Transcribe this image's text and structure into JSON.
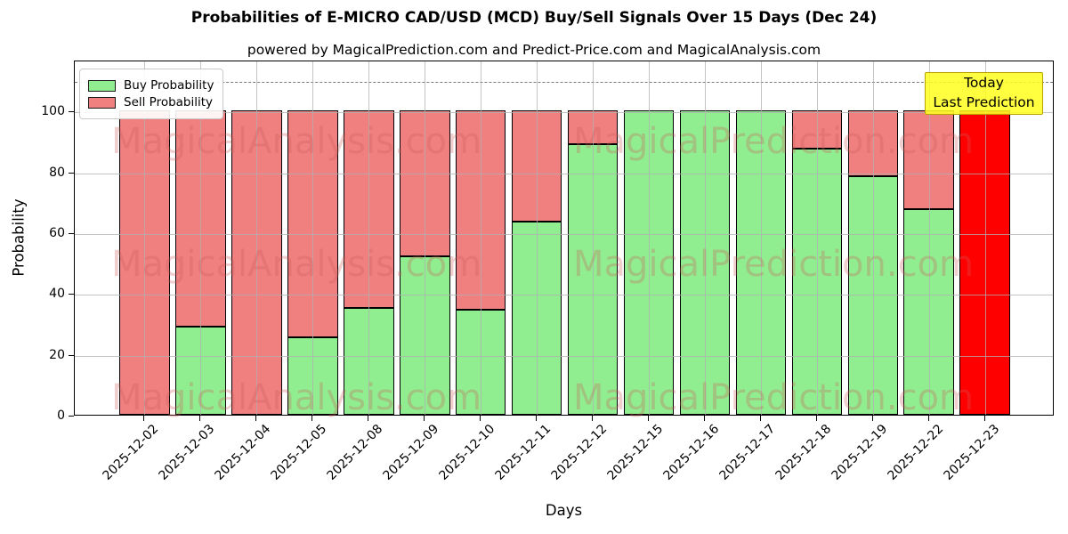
{
  "title": "Probabilities of E-MICRO CAD/USD (MCD) Buy/Sell Signals Over 15 Days (Dec 24)",
  "subtitle": "powered by MagicalPrediction.com and Predict-Price.com and MagicalAnalysis.com",
  "axes": {
    "xlabel": "Days",
    "ylabel": "Probability"
  },
  "legend": [
    {
      "label": "Buy Probability",
      "color": "#90EE90"
    },
    {
      "label": "Sell Probability",
      "color": "#F08080"
    }
  ],
  "annotation": {
    "line1": "Today",
    "line2": "Last Prediction",
    "bg_color": "#FFFF1E"
  },
  "watermarks": {
    "left": "MagicalAnalysis.com",
    "right": "MagicalPrediction.com"
  },
  "chart_data": {
    "type": "bar",
    "stacked": true,
    "title": "Probabilities of E-MICRO CAD/USD (MCD) Buy/Sell Signals Over 15 Days (Dec 24)",
    "xlabel": "Days",
    "ylabel": "Probability",
    "ylim": [
      0,
      116.8
    ],
    "yticks": [
      0,
      20,
      40,
      60,
      80,
      100
    ],
    "grid": true,
    "dashed_line_y": 110,
    "legend_position": "upper-left",
    "categories": [
      "2025-12-02",
      "2025-12-03",
      "2025-12-04",
      "2025-12-05",
      "2025-12-08",
      "2025-12-09",
      "2025-12-10",
      "2025-12-11",
      "2025-12-12",
      "2025-12-15",
      "2025-12-16",
      "2025-12-17",
      "2025-12-18",
      "2025-12-19",
      "2025-12-22",
      "2025-12-23"
    ],
    "series": [
      {
        "name": "Buy Probability",
        "color": "#90EE90",
        "values": [
          0,
          29,
          0,
          25.5,
          35,
          52,
          34.5,
          63.5,
          89,
          100,
          100,
          100,
          87.5,
          78.5,
          67.5,
          0
        ]
      },
      {
        "name": "Sell Probability",
        "color": "#F08080",
        "values": [
          100,
          71,
          100,
          74.5,
          65,
          48,
          65.5,
          36.5,
          11,
          0,
          0,
          0,
          12.5,
          21.5,
          32.5,
          0
        ]
      }
    ],
    "special_bars": [
      {
        "index": 15,
        "category": "2025-12-23",
        "color": "#FF0000",
        "value": 100,
        "note": "Today / Last Prediction"
      }
    ]
  }
}
